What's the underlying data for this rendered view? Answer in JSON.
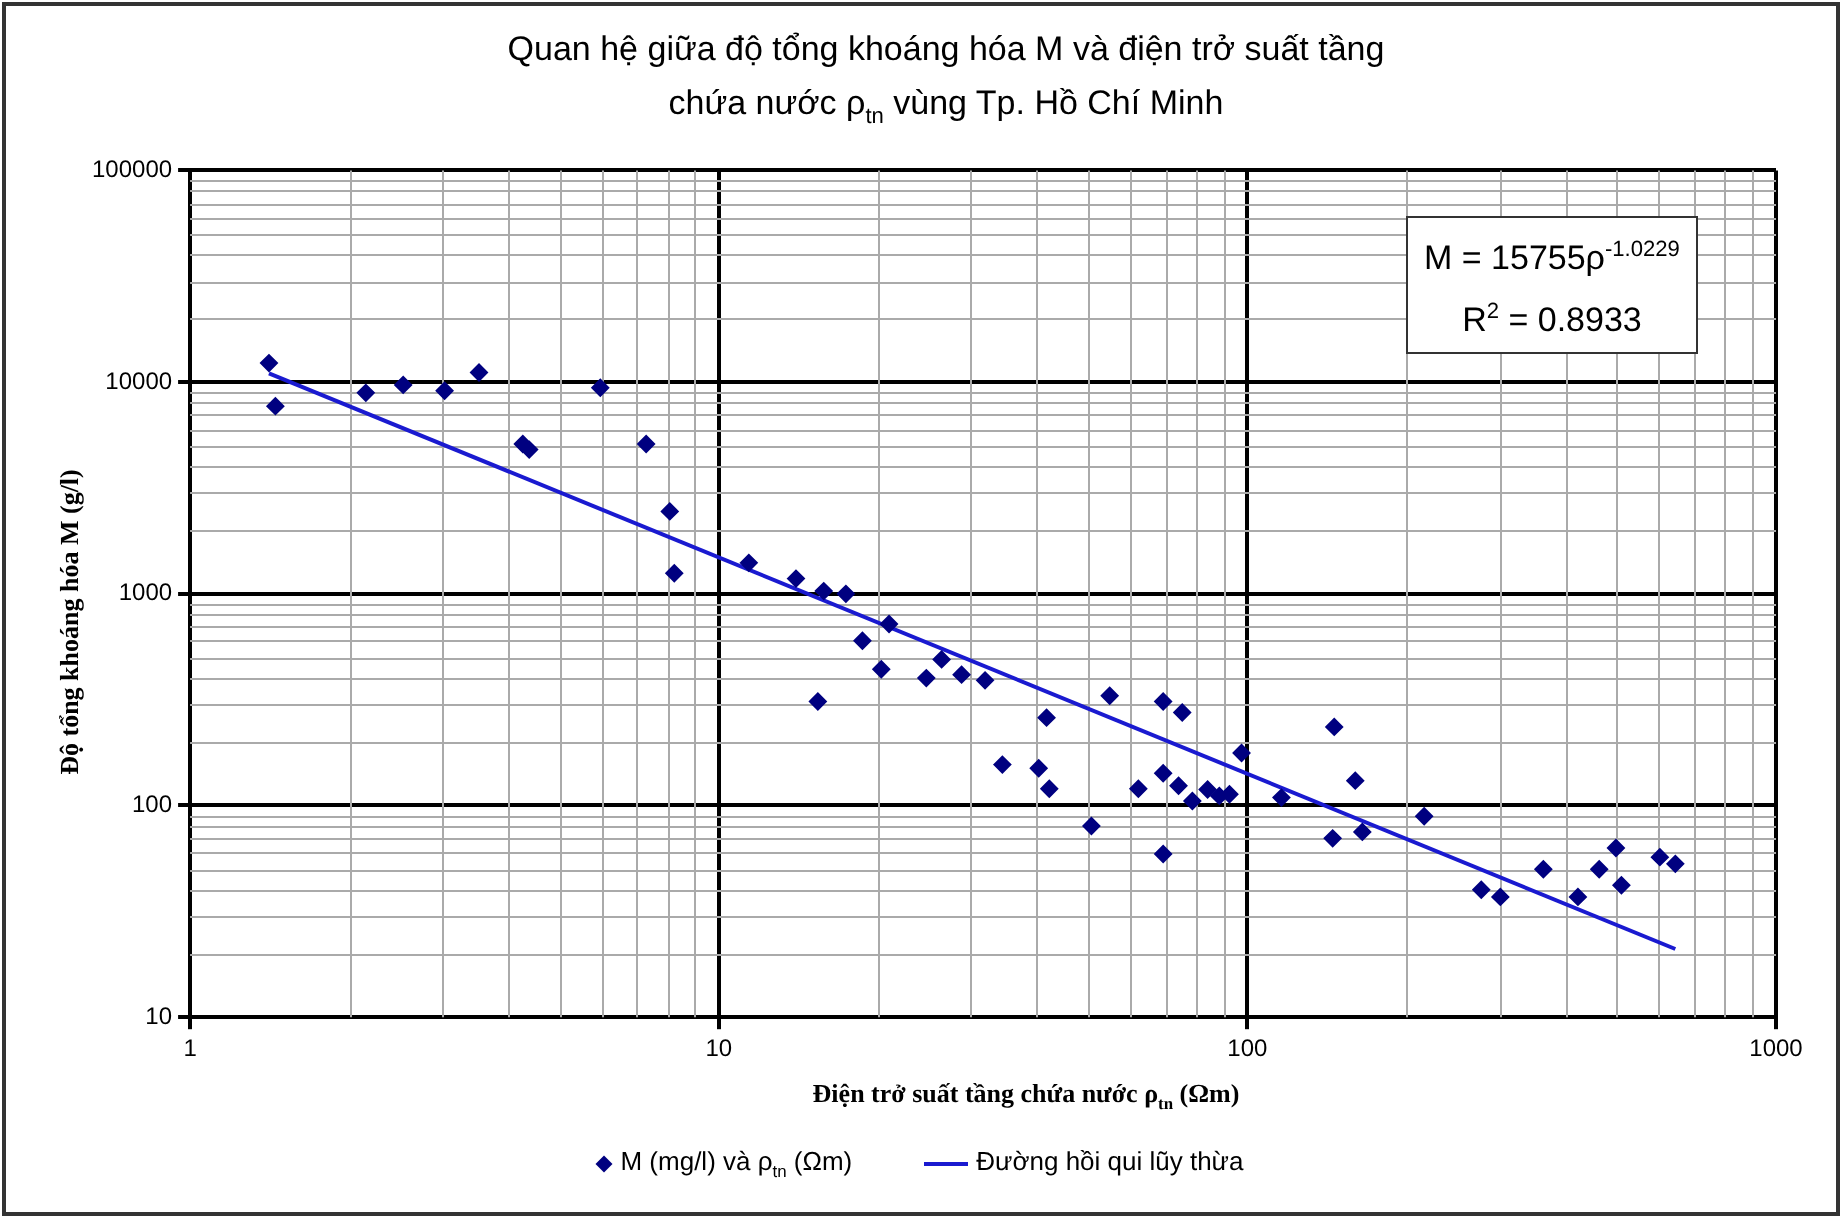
{
  "chart_data": {
    "type": "scatter",
    "title": "Quan hệ giữa độ tổng khoáng hóa M và điện trở suất tầng chứa nước ρ$_{tn}$ vùng Tp. Hồ Chí Minh",
    "xlabel": "Điện trở suất tầng chứa nước ρ$_{tn}$ (Ωm)",
    "ylabel": "Độ tổng khoáng hóa M (g/l)",
    "log": "xy",
    "xlim": [
      1,
      1000
    ],
    "ylim": [
      10,
      100000
    ],
    "xticks": [
      1,
      10,
      100,
      1000
    ],
    "yticks": [
      10,
      100,
      1000,
      10000,
      100000
    ],
    "grid": true,
    "legend": "bottom",
    "annotations": [
      "M = 15755ρ$^{-1.0229}$",
      "R$^{2}$ = 0.8933"
    ],
    "series": [
      {
        "name": "M (mg/l) và ρ$_{tn}$ (Ωm)",
        "marker": "diamond",
        "color": "#000080",
        "x": [
          1.41,
          1.45,
          2.15,
          2.53,
          3.03,
          3.52,
          4.26,
          4.38,
          5.97,
          7.29,
          8.08,
          8.24,
          11.4,
          14.0,
          15.8,
          17.4,
          21.0,
          18.7,
          20.3,
          15.4,
          24.7,
          26.4,
          28.8,
          31.9,
          34.4,
          40.3,
          41.7,
          42.2,
          50.7,
          54.9,
          62.2,
          69.3,
          75.3,
          69.3,
          74.1,
          69.3,
          78.7,
          84.1,
          88.5,
          92.5,
          97.5,
          116,
          146,
          160,
          145,
          165,
          216,
          277,
          301,
          363,
          422,
          463,
          498,
          510,
          603,
          645
        ],
        "values": [
          12300,
          7700,
          8900,
          9700,
          9100,
          11100,
          5100,
          4800,
          9400,
          5100,
          2450,
          1250,
          1400,
          1180,
          1030,
          1000,
          720,
          600,
          440,
          310,
          400,
          490,
          415,
          390,
          156,
          150,
          260,
          120,
          80,
          330,
          120,
          310,
          275,
          142,
          124,
          59,
          105,
          119,
          111,
          113,
          177,
          109,
          235,
          131,
          70,
          75,
          89,
          40,
          37,
          50,
          37,
          50,
          63,
          42,
          57,
          53
        ]
      },
      {
        "name": "Đường hồi qui lũy thừa",
        "type": "line",
        "marker": "none",
        "color": "#1a1ad0",
        "x": [
          1.41,
          645
        ],
        "values": [
          11000,
          21
        ]
      }
    ]
  }
}
